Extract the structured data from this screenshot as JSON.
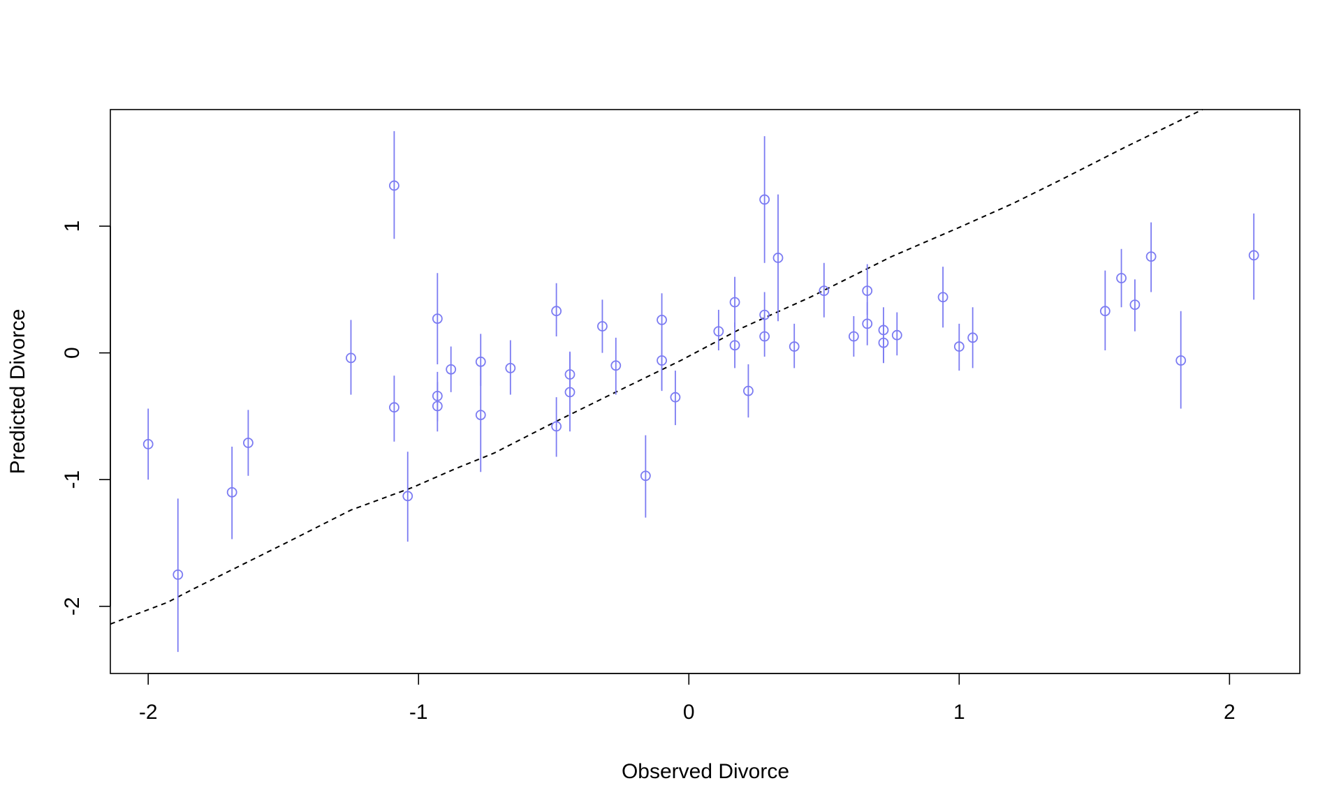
{
  "chart_data": {
    "type": "scatter",
    "title": "",
    "xlabel": "Observed Divorce",
    "ylabel": "Predicted Divorce",
    "xlim": [
      -2.14,
      2.26
    ],
    "ylim": [
      -2.53,
      1.92
    ],
    "xticks": [
      -2,
      -1,
      0,
      1,
      2
    ],
    "xtick_labels": [
      "-2",
      "-1",
      "0",
      "1",
      "2"
    ],
    "yticks": [
      -2,
      -1,
      0,
      1
    ],
    "ytick_labels": [
      "-2",
      "-1",
      "0",
      "1"
    ],
    "grid": false,
    "legend": "none",
    "point_color": "#7b7bf2",
    "interval_color": "#7b7bf2",
    "reference_line": {
      "style": "dashed",
      "color": "#000000",
      "x": [
        -2.14,
        -1.93,
        -1.83,
        -1.5,
        -1.25,
        -1.02,
        -0.87,
        -0.72,
        -0.5,
        -0.3,
        -0.03,
        0.2,
        0.45,
        0.75,
        1.0,
        1.2,
        1.38,
        1.62,
        1.9
      ],
      "y": [
        -2.14,
        -1.97,
        -1.86,
        -1.51,
        -1.24,
        -1.06,
        -0.92,
        -0.79,
        -0.55,
        -0.34,
        -0.06,
        0.2,
        0.44,
        0.76,
        0.99,
        1.18,
        1.37,
        1.63,
        1.92
      ]
    },
    "series": [
      {
        "x": [
          -2.0,
          -1.89,
          -1.69,
          -1.63,
          -1.25,
          -1.09,
          -1.09,
          -1.04,
          -0.93,
          -0.93,
          -0.93,
          -0.88,
          -0.77,
          -0.77,
          -0.66,
          -0.49,
          -0.49,
          -0.44,
          -0.44,
          -0.32,
          -0.27,
          -0.16,
          -0.1,
          -0.1,
          -0.05,
          0.11,
          0.17,
          0.17,
          0.22,
          0.28,
          0.28,
          0.28,
          0.33,
          0.39,
          0.5,
          0.61,
          0.66,
          0.66,
          0.72,
          0.72,
          0.77,
          0.94,
          1.0,
          1.05,
          1.54,
          1.6,
          1.65,
          1.71,
          1.82,
          2.09
        ],
        "y": [
          -0.72,
          -1.75,
          -1.1,
          -0.71,
          -0.04,
          1.32,
          -0.43,
          -1.13,
          0.27,
          -0.34,
          -0.42,
          -0.13,
          -0.07,
          -0.49,
          -0.12,
          0.33,
          -0.58,
          -0.17,
          -0.31,
          0.21,
          -0.1,
          -0.97,
          0.26,
          -0.06,
          -0.35,
          0.17,
          0.4,
          0.06,
          -0.3,
          1.21,
          0.3,
          0.13,
          0.75,
          0.05,
          0.49,
          0.13,
          0.49,
          0.23,
          0.18,
          0.08,
          0.14,
          0.44,
          0.05,
          0.12,
          0.33,
          0.59,
          0.38,
          0.76,
          -0.06,
          0.77
        ],
        "lo": [
          -1.0,
          -2.36,
          -1.47,
          -0.97,
          -0.33,
          0.9,
          -0.7,
          -1.49,
          -0.09,
          -0.54,
          -0.62,
          -0.31,
          -0.26,
          -0.94,
          -0.33,
          0.13,
          -0.82,
          -0.35,
          -0.62,
          0.0,
          -0.33,
          -1.3,
          -0.3,
          -0.29,
          -0.57,
          0.02,
          0.2,
          -0.12,
          -0.51,
          0.71,
          0.1,
          -0.03,
          0.25,
          -0.12,
          0.28,
          -0.03,
          0.3,
          0.06,
          -0.08,
          -0.08,
          -0.02,
          0.2,
          -0.14,
          -0.12,
          0.02,
          0.36,
          0.17,
          0.48,
          -0.44,
          0.42
        ],
        "hi": [
          -0.44,
          -1.15,
          -0.74,
          -0.45,
          0.26,
          1.75,
          -0.18,
          -0.78,
          0.63,
          -0.15,
          -0.23,
          0.05,
          0.15,
          -0.1,
          0.1,
          0.55,
          -0.35,
          0.0,
          0.01,
          0.42,
          0.12,
          -0.65,
          0.47,
          0.18,
          -0.14,
          0.34,
          0.6,
          0.24,
          -0.09,
          1.71,
          0.48,
          0.3,
          1.25,
          0.23,
          0.71,
          0.29,
          0.7,
          0.4,
          0.36,
          0.24,
          0.32,
          0.68,
          0.23,
          0.36,
          0.65,
          0.82,
          0.58,
          1.03,
          0.33,
          1.1
        ]
      }
    ]
  }
}
